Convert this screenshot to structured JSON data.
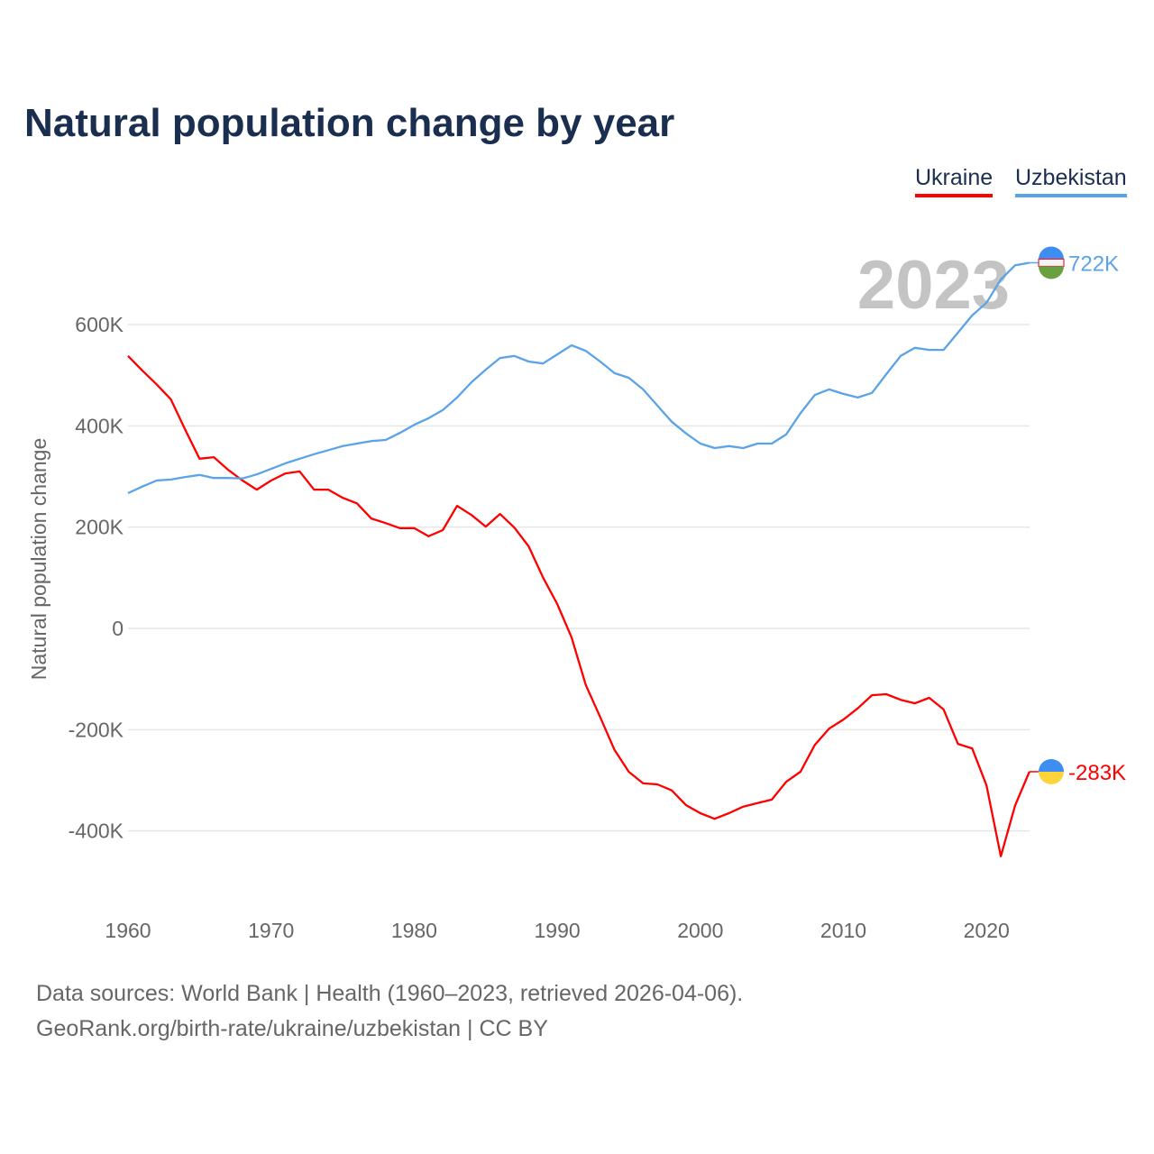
{
  "chart_data": {
    "type": "line",
    "title": "Natural population change by year",
    "xlabel": "",
    "ylabel": "Natural population change",
    "xlim": [
      1960,
      2023
    ],
    "ylim": [
      -520,
      740
    ],
    "y_unit": "thousands",
    "y_ticks": [
      600,
      400,
      200,
      0,
      -200,
      -400
    ],
    "y_tick_labels": [
      "600K",
      "400K",
      "200K",
      "0",
      "-200K",
      "-400K"
    ],
    "x_ticks": [
      1960,
      1970,
      1980,
      1990,
      2000,
      2010,
      2020
    ],
    "x_tick_labels": [
      "1960",
      "1970",
      "1980",
      "1990",
      "2000",
      "2010",
      "2020"
    ],
    "grid": true,
    "legend_position": "top-right",
    "year_watermark": "2023",
    "x": [
      1960,
      1961,
      1962,
      1963,
      1964,
      1965,
      1966,
      1967,
      1968,
      1969,
      1970,
      1971,
      1972,
      1973,
      1974,
      1975,
      1976,
      1977,
      1978,
      1979,
      1980,
      1981,
      1982,
      1983,
      1984,
      1985,
      1986,
      1987,
      1988,
      1989,
      1990,
      1991,
      1992,
      1993,
      1994,
      1995,
      1996,
      1997,
      1998,
      1999,
      2000,
      2001,
      2002,
      2003,
      2004,
      2005,
      2006,
      2007,
      2008,
      2009,
      2010,
      2011,
      2012,
      2013,
      2014,
      2015,
      2016,
      2017,
      2018,
      2019,
      2020,
      2021,
      2022,
      2023
    ],
    "series": [
      {
        "name": "Ukraine",
        "color": "#ff0000",
        "end_label": "-283K",
        "values": [
          538,
          509,
          482,
          452,
          392,
          335,
          338,
          313,
          292,
          274,
          292,
          306,
          310,
          274,
          274,
          258,
          247,
          217,
          208,
          198,
          198,
          182,
          194,
          242,
          224,
          201,
          226,
          199,
          162,
          101,
          48,
          -18,
          -112,
          -175,
          -240,
          -283,
          -306,
          -308,
          -320,
          -349,
          -365,
          -376,
          -365,
          -352,
          -345,
          -338,
          -303,
          -283,
          -230,
          -198,
          -180,
          -158,
          -132,
          -130,
          -141,
          -148,
          -137,
          -160,
          -228,
          -237,
          -310,
          -450,
          -350,
          -283
        ]
      },
      {
        "name": "Uzbekistan",
        "color": "#5ba3e8",
        "end_label": "722K",
        "values": [
          267,
          280,
          292,
          294,
          299,
          303,
          297,
          297,
          296,
          304,
          315,
          326,
          335,
          344,
          352,
          360,
          365,
          370,
          372,
          386,
          402,
          415,
          431,
          456,
          486,
          511,
          534,
          538,
          527,
          523,
          541,
          559,
          548,
          527,
          504,
          495,
          472,
          440,
          408,
          385,
          365,
          356,
          360,
          356,
          365,
          365,
          383,
          425,
          461,
          472,
          463,
          456,
          465,
          502,
          538,
          554,
          550,
          550,
          584,
          618,
          643,
          689,
          717,
          722
        ]
      }
    ]
  },
  "footer": {
    "line1": "Data sources: World Bank | Health (1960–2023, retrieved 2026-04-06).",
    "line2": "GeoRank.org/birth-rate/ukraine/uzbekistan | CC BY"
  }
}
